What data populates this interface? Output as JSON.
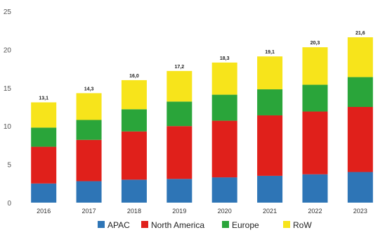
{
  "chart_data": {
    "type": "bar",
    "stacked": true,
    "title": "",
    "xlabel": "",
    "ylabel": "",
    "ylim": [
      0,
      25
    ],
    "yticks": [
      0,
      5,
      10,
      15,
      20,
      25
    ],
    "grid": false,
    "legend_position": "bottom",
    "categories": [
      "2016",
      "2017",
      "2018",
      "2019",
      "2020",
      "2021",
      "2022",
      "2023"
    ],
    "series": [
      {
        "name": "APAC",
        "color": "#2e75b6",
        "values": [
          2.5,
          2.8,
          3.0,
          3.1,
          3.3,
          3.5,
          3.7,
          4.0
        ]
      },
      {
        "name": "North America",
        "color": "#e0201b",
        "values": [
          4.8,
          5.4,
          6.3,
          6.9,
          7.4,
          7.9,
          8.2,
          8.5
        ]
      },
      {
        "name": "Europe",
        "color": "#2aa53a",
        "values": [
          2.5,
          2.6,
          2.9,
          3.2,
          3.4,
          3.4,
          3.5,
          3.9
        ]
      },
      {
        "name": "RoW",
        "color": "#f7e41b",
        "values": [
          3.3,
          3.5,
          3.8,
          4.0,
          4.2,
          4.3,
          4.9,
          5.2
        ]
      }
    ],
    "totals": [
      "13,1",
      "14,3",
      "16,0",
      "17,2",
      "18,3",
      "19,1",
      "20,3",
      "21,6"
    ]
  }
}
